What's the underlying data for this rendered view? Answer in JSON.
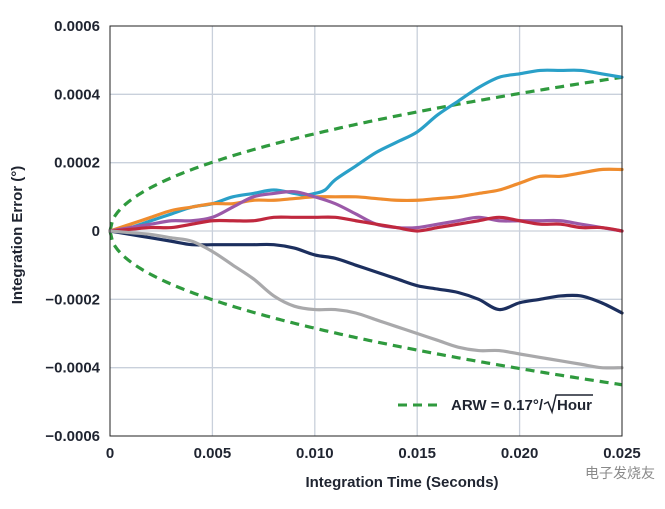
{
  "chart_data": {
    "type": "line",
    "xlabel": "Integration Time (Seconds)",
    "ylabel": "Integration Error (°)",
    "xlim": [
      0,
      0.025
    ],
    "ylim": [
      -0.0006,
      0.0006
    ],
    "x_ticks": [
      0,
      0.005,
      0.01,
      0.015,
      0.02,
      0.025
    ],
    "x_tick_labels": [
      "0",
      "0.005",
      "0.010",
      "0.015",
      "0.020",
      "0.025"
    ],
    "y_ticks": [
      0.0006,
      0.0004,
      0.0002,
      0,
      -0.0002,
      -0.0004,
      -0.0006
    ],
    "y_tick_labels": [
      "0.0006",
      "0.0004",
      "0.0002",
      "0",
      "−0.0002",
      "−0.0004",
      "−0.0006"
    ],
    "grid": true,
    "legend": {
      "placement": "bottom-right",
      "prefix": "ARW = 0.17°/",
      "radicand": "Hour"
    },
    "series": [
      {
        "color": "#2aa0c8",
        "x": [
          0,
          0.001,
          0.002,
          0.003,
          0.004,
          0.005,
          0.006,
          0.007,
          0.008,
          0.009,
          0.0095,
          0.01,
          0.0105,
          0.011,
          0.012,
          0.013,
          0.014,
          0.015,
          0.016,
          0.017,
          0.018,
          0.019,
          0.02,
          0.021,
          0.022,
          0.023,
          0.024,
          0.025
        ],
        "y": [
          0,
          1e-05,
          3e-05,
          5e-05,
          7e-05,
          8e-05,
          0.0001,
          0.00011,
          0.00012,
          0.00011,
          0.000105,
          0.00011,
          0.00012,
          0.00015,
          0.00019,
          0.00023,
          0.00026,
          0.00029,
          0.00034,
          0.00038,
          0.00042,
          0.00045,
          0.00046,
          0.00047,
          0.00047,
          0.00047,
          0.00046,
          0.00045
        ]
      },
      {
        "color": "#ef8c2e",
        "x": [
          0,
          0.001,
          0.002,
          0.003,
          0.004,
          0.005,
          0.006,
          0.007,
          0.008,
          0.009,
          0.01,
          0.011,
          0.012,
          0.013,
          0.014,
          0.015,
          0.016,
          0.017,
          0.018,
          0.019,
          0.02,
          0.021,
          0.022,
          0.023,
          0.024,
          0.025
        ],
        "y": [
          0,
          2e-05,
          4e-05,
          6e-05,
          7e-05,
          8e-05,
          8e-05,
          9e-05,
          9e-05,
          9.5e-05,
          0.0001,
          0.0001,
          0.0001,
          9.5e-05,
          9e-05,
          9e-05,
          9.5e-05,
          0.0001,
          0.00011,
          0.00012,
          0.00014,
          0.00016,
          0.00016,
          0.00017,
          0.00018,
          0.00018
        ]
      },
      {
        "color": "#9b59a8",
        "x": [
          0,
          0.001,
          0.002,
          0.003,
          0.004,
          0.005,
          0.006,
          0.007,
          0.008,
          0.009,
          0.01,
          0.011,
          0.012,
          0.013,
          0.014,
          0.015,
          0.016,
          0.017,
          0.018,
          0.019,
          0.02,
          0.021,
          0.022,
          0.023,
          0.024,
          0.025
        ],
        "y": [
          0,
          1e-05,
          2e-05,
          3e-05,
          3e-05,
          4e-05,
          7e-05,
          0.0001,
          0.00011,
          0.000115,
          0.0001,
          8e-05,
          5e-05,
          2e-05,
          1e-05,
          1e-05,
          2e-05,
          3e-05,
          4e-05,
          3e-05,
          3e-05,
          3e-05,
          3e-05,
          2e-05,
          1e-05,
          0
        ]
      },
      {
        "color": "#c0283e",
        "x": [
          0,
          0.001,
          0.002,
          0.003,
          0.004,
          0.005,
          0.006,
          0.007,
          0.008,
          0.009,
          0.01,
          0.011,
          0.012,
          0.013,
          0.014,
          0.015,
          0.016,
          0.017,
          0.018,
          0.019,
          0.02,
          0.021,
          0.022,
          0.023,
          0.024,
          0.025
        ],
        "y": [
          0,
          5e-06,
          1e-05,
          1e-05,
          2e-05,
          3e-05,
          3e-05,
          3e-05,
          4e-05,
          4e-05,
          4e-05,
          4e-05,
          3e-05,
          2e-05,
          1e-05,
          0,
          1e-05,
          2e-05,
          3e-05,
          4e-05,
          3e-05,
          2e-05,
          2e-05,
          1e-05,
          1e-05,
          0
        ]
      },
      {
        "color": "#1c2f5e",
        "x": [
          0,
          0.001,
          0.002,
          0.003,
          0.004,
          0.005,
          0.006,
          0.007,
          0.008,
          0.009,
          0.01,
          0.011,
          0.012,
          0.013,
          0.014,
          0.015,
          0.016,
          0.017,
          0.018,
          0.019,
          0.02,
          0.021,
          0.022,
          0.023,
          0.024,
          0.025
        ],
        "y": [
          0,
          -1e-05,
          -2e-05,
          -3e-05,
          -4e-05,
          -4e-05,
          -4e-05,
          -4e-05,
          -4e-05,
          -5e-05,
          -7e-05,
          -8e-05,
          -0.0001,
          -0.00012,
          -0.00014,
          -0.00016,
          -0.00017,
          -0.00018,
          -0.0002,
          -0.00023,
          -0.00021,
          -0.0002,
          -0.00019,
          -0.00019,
          -0.00021,
          -0.00024
        ]
      },
      {
        "color": "#a9a9ab",
        "x": [
          0,
          0.001,
          0.002,
          0.003,
          0.004,
          0.005,
          0.006,
          0.007,
          0.008,
          0.009,
          0.01,
          0.011,
          0.012,
          0.013,
          0.014,
          0.015,
          0.016,
          0.017,
          0.018,
          0.019,
          0.02,
          0.021,
          0.022,
          0.023,
          0.024,
          0.025
        ],
        "y": [
          0,
          -5e-06,
          -1e-05,
          -2e-05,
          -3e-05,
          -6e-05,
          -0.0001,
          -0.00014,
          -0.00019,
          -0.00022,
          -0.00023,
          -0.00023,
          -0.00024,
          -0.00026,
          -0.00028,
          -0.0003,
          -0.00032,
          -0.00034,
          -0.00035,
          -0.00035,
          -0.00036,
          -0.00037,
          -0.00038,
          -0.00039,
          -0.0004,
          -0.0004
        ]
      }
    ],
    "envelope": {
      "color": "#2f9a3e",
      "style": "dashed",
      "note_in_legend": true,
      "amplitude_at_xmax": 0.00045
    },
    "watermark": "电子发烧友"
  }
}
